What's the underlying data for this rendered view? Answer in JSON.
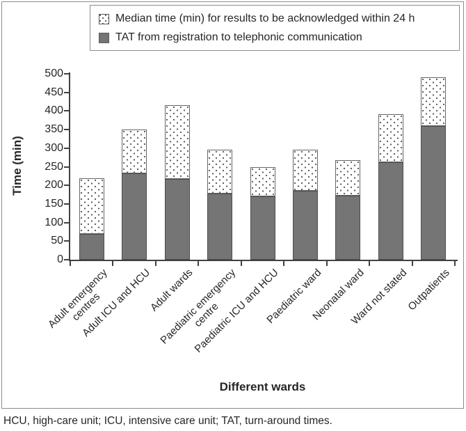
{
  "legend": {
    "items": [
      {
        "label": "Median time (min) for results to be acknowledged within 24 h",
        "swatch": "dotted"
      },
      {
        "label": "TAT from registration to telephonic communication",
        "swatch": "solid"
      }
    ]
  },
  "chart_data": {
    "type": "bar",
    "stacked": true,
    "title": "",
    "xlabel": "Different wards",
    "ylabel": "Time (min)",
    "ylim": [
      0,
      500
    ],
    "yticks": [
      0,
      50,
      100,
      150,
      200,
      250,
      300,
      350,
      400,
      450,
      500
    ],
    "grid": false,
    "legend_position": "top",
    "categories": [
      "Adult emergency\ncentres",
      "Adult ICU and HCU",
      "Adult wards",
      "Paediatric emergency\ncentre",
      "Paediatric ICU and HCU",
      "Paediatric ward",
      "Neonatal ward",
      "Ward not stated",
      "Outpatients"
    ],
    "series": [
      {
        "name": "TAT from registration to telephonic communication",
        "role": "bottom",
        "pattern": "solid",
        "color": "#757575",
        "values": [
          70,
          233,
          217,
          178,
          170,
          185,
          172,
          263,
          360
        ]
      },
      {
        "name": "Median time (min) for results to be acknowledged within 24 h",
        "role": "top",
        "pattern": "dotted",
        "color": "#ffffff",
        "dot_color": "#595959",
        "values": [
          150,
          117,
          198,
          117,
          80,
          110,
          96,
          129,
          130
        ]
      }
    ],
    "stack_totals": [
      220,
      350,
      415,
      295,
      250,
      295,
      268,
      392,
      490
    ]
  },
  "footnote": "HCU, high-care unit; ICU, intensive care unit; TAT, turn-around times.",
  "colors": {
    "bar_fill": "#757575",
    "bar_border": "#4d4d4d",
    "axis": "#404040",
    "box_border": "#8c8c8c",
    "text": "#262626"
  }
}
